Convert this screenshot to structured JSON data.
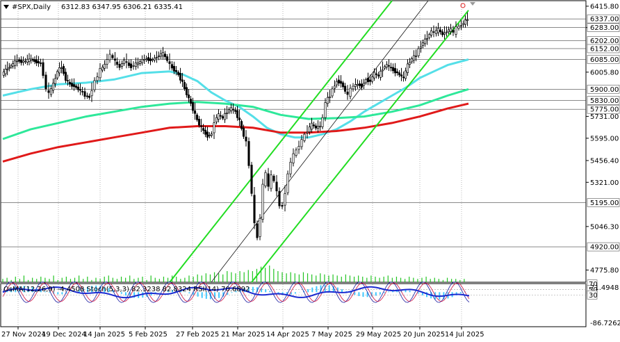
{
  "chart_data": [
    {
      "type": "candlestick",
      "title": "#SPX,Daily",
      "ohlc_label": "6312.83 6347.95 6306.21 6335.41",
      "ylim": [
        4700,
        6450
      ],
      "y_ticks": [
        "6415.80",
        "6283.00",
        "6005.80",
        "5731.00",
        "5595.00",
        "5456.40",
        "5321.00",
        "5046.30",
        "4775.80"
      ],
      "levels": [
        {
          "label": "6337.00",
          "value": 6337
        },
        {
          "label": "6283.00",
          "value": 6283
        },
        {
          "label": "6202.00",
          "value": 6202
        },
        {
          "label": "6152.00",
          "value": 6152
        },
        {
          "label": "6085.00",
          "value": 6085
        },
        {
          "label": "5900.00",
          "value": 5900
        },
        {
          "label": "5830.00",
          "value": 5830
        },
        {
          "label": "5775.00",
          "value": 5775
        },
        {
          "label": "5195.00",
          "value": 5195
        },
        {
          "label": "4920.00",
          "value": 4920
        }
      ],
      "x_labels": [
        "27 Nov 2024",
        "19 Dec 2024",
        "14 Jan 2025",
        "5 Feb 2025",
        "27 Feb 2025",
        "21 Mar 2025",
        "14 Apr 2025",
        "7 May 2025",
        "29 May 2025",
        "20 Jun 2025",
        "14 Jul 2025"
      ],
      "close_path": [
        [
          0,
          5990
        ],
        [
          8,
          6030
        ],
        [
          16,
          6055
        ],
        [
          22,
          6080
        ],
        [
          28,
          6070
        ],
        [
          34,
          6075
        ],
        [
          42,
          6085
        ],
        [
          50,
          6070
        ],
        [
          56,
          6060
        ],
        [
          60,
          5990
        ],
        [
          64,
          5900
        ],
        [
          68,
          5870
        ],
        [
          74,
          5930
        ],
        [
          80,
          6010
        ],
        [
          86,
          6040
        ],
        [
          92,
          5960
        ],
        [
          98,
          5930
        ],
        [
          104,
          5920
        ],
        [
          110,
          5900
        ],
        [
          116,
          5880
        ],
        [
          120,
          5860
        ],
        [
          126,
          5850
        ],
        [
          130,
          5900
        ],
        [
          134,
          5950
        ],
        [
          138,
          5980
        ],
        [
          142,
          6020
        ],
        [
          148,
          6050
        ],
        [
          152,
          6090
        ],
        [
          156,
          6110
        ],
        [
          160,
          6095
        ],
        [
          166,
          6050
        ],
        [
          170,
          6040
        ],
        [
          176,
          6080
        ],
        [
          180,
          6060
        ],
        [
          186,
          6040
        ],
        [
          190,
          6050
        ],
        [
          196,
          6060
        ],
        [
          202,
          6080
        ],
        [
          208,
          6090
        ],
        [
          214,
          6080
        ],
        [
          220,
          6090
        ],
        [
          226,
          6110
        ],
        [
          232,
          6120
        ],
        [
          238,
          6080
        ],
        [
          242,
          6050
        ],
        [
          248,
          6020
        ],
        [
          254,
          5990
        ],
        [
          260,
          5940
        ],
        [
          266,
          5870
        ],
        [
          272,
          5810
        ],
        [
          278,
          5740
        ],
        [
          284,
          5680
        ],
        [
          290,
          5640
        ],
        [
          296,
          5610
        ],
        [
          302,
          5620
        ],
        [
          306,
          5700
        ],
        [
          312,
          5740
        ],
        [
          318,
          5720
        ],
        [
          324,
          5760
        ],
        [
          330,
          5780
        ],
        [
          336,
          5760
        ],
        [
          342,
          5700
        ],
        [
          348,
          5610
        ],
        [
          352,
          5570
        ],
        [
          356,
          5430
        ],
        [
          360,
          5250
        ],
        [
          364,
          5060
        ],
        [
          368,
          4980
        ],
        [
          372,
          5100
        ],
        [
          376,
          5300
        ],
        [
          380,
          5380
        ],
        [
          384,
          5290
        ],
        [
          388,
          5360
        ],
        [
          392,
          5330
        ],
        [
          396,
          5260
        ],
        [
          400,
          5180
        ],
        [
          404,
          5170
        ],
        [
          408,
          5260
        ],
        [
          412,
          5370
        ],
        [
          416,
          5450
        ],
        [
          420,
          5490
        ],
        [
          424,
          5520
        ],
        [
          428,
          5550
        ],
        [
          432,
          5580
        ],
        [
          436,
          5620
        ],
        [
          440,
          5640
        ],
        [
          446,
          5680
        ],
        [
          452,
          5660
        ],
        [
          458,
          5670
        ],
        [
          462,
          5720
        ],
        [
          466,
          5820
        ],
        [
          472,
          5860
        ],
        [
          476,
          5900
        ],
        [
          482,
          5950
        ],
        [
          488,
          5940
        ],
        [
          494,
          5890
        ],
        [
          498,
          5860
        ],
        [
          502,
          5900
        ],
        [
          506,
          5920
        ],
        [
          512,
          5930
        ],
        [
          518,
          5920
        ],
        [
          524,
          5960
        ],
        [
          530,
          5950
        ],
        [
          536,
          6000
        ],
        [
          542,
          5980
        ],
        [
          548,
          6030
        ],
        [
          554,
          6050
        ],
        [
          560,
          6030
        ],
        [
          566,
          6010
        ],
        [
          572,
          5990
        ],
        [
          578,
          5970
        ],
        [
          584,
          6050
        ],
        [
          590,
          6090
        ],
        [
          596,
          6110
        ],
        [
          600,
          6150
        ],
        [
          606,
          6190
        ],
        [
          612,
          6220
        ],
        [
          618,
          6260
        ],
        [
          622,
          6250
        ],
        [
          628,
          6270
        ],
        [
          634,
          6240
        ],
        [
          640,
          6260
        ],
        [
          646,
          6270
        ],
        [
          650,
          6250
        ],
        [
          654,
          6280
        ],
        [
          658,
          6290
        ],
        [
          664,
          6310
        ],
        [
          670,
          6335
        ]
      ],
      "series": [
        {
          "name": "",
          "color": "#55dfe8",
          "points": [
            [
              0,
              5860
            ],
            [
              40,
              5900
            ],
            [
              80,
              5930
            ],
            [
              120,
              5940
            ],
            [
              160,
              5960
            ],
            [
              200,
              6000
            ],
            [
              240,
              6010
            ],
            [
              260,
              5990
            ],
            [
              280,
              5950
            ],
            [
              300,
              5880
            ],
            [
              320,
              5830
            ],
            [
              340,
              5790
            ],
            [
              360,
              5730
            ],
            [
              380,
              5660
            ],
            [
              400,
              5620
            ],
            [
              420,
              5600
            ],
            [
              440,
              5600
            ],
            [
              460,
              5620
            ],
            [
              480,
              5650
            ],
            [
              500,
              5700
            ],
            [
              520,
              5760
            ],
            [
              540,
              5810
            ],
            [
              560,
              5860
            ],
            [
              580,
              5910
            ],
            [
              600,
              5970
            ],
            [
              620,
              6010
            ],
            [
              640,
              6050
            ],
            [
              670,
              6085
            ]
          ]
        },
        {
          "name": "",
          "color": "#2ee89a",
          "points": [
            [
              0,
              5590
            ],
            [
              40,
              5650
            ],
            [
              80,
              5690
            ],
            [
              120,
              5730
            ],
            [
              160,
              5760
            ],
            [
              200,
              5790
            ],
            [
              240,
              5810
            ],
            [
              280,
              5820
            ],
            [
              320,
              5810
            ],
            [
              360,
              5790
            ],
            [
              400,
              5740
            ],
            [
              440,
              5715
            ],
            [
              480,
              5720
            ],
            [
              520,
              5730
            ],
            [
              560,
              5760
            ],
            [
              600,
              5800
            ],
            [
              640,
              5860
            ],
            [
              670,
              5900
            ]
          ]
        },
        {
          "name": "",
          "color": "#e01a1a",
          "points": [
            [
              0,
              5450
            ],
            [
              40,
              5500
            ],
            [
              80,
              5540
            ],
            [
              120,
              5570
            ],
            [
              160,
              5600
            ],
            [
              200,
              5630
            ],
            [
              240,
              5660
            ],
            [
              280,
              5670
            ],
            [
              320,
              5670
            ],
            [
              360,
              5660
            ],
            [
              400,
              5630
            ],
            [
              440,
              5630
            ],
            [
              480,
              5640
            ],
            [
              520,
              5660
            ],
            [
              560,
              5690
            ],
            [
              600,
              5730
            ],
            [
              640,
              5780
            ],
            [
              670,
              5810
            ]
          ]
        }
      ],
      "channels": [
        {
          "color": "#22dd22",
          "line": [
            [
              240,
              4700
            ],
            [
              560,
              6450
            ]
          ]
        },
        {
          "color": "#22dd22",
          "line": [
            [
              358,
              4700
            ],
            [
              670,
              6390
            ]
          ]
        },
        {
          "color": "#111111",
          "line": [
            [
              300,
              4700
            ],
            [
              612,
              6450
            ]
          ]
        }
      ],
      "volume": [
        3,
        4,
        2,
        5,
        3,
        6,
        2,
        4,
        3,
        5,
        4,
        3,
        6,
        2,
        4,
        5,
        3,
        4,
        6,
        3,
        5,
        2,
        4,
        3,
        5,
        6,
        4,
        3,
        5,
        4,
        6,
        3,
        4,
        5,
        2,
        6,
        4,
        3,
        5,
        4,
        6,
        5,
        3,
        4,
        6,
        5,
        7,
        6,
        8,
        7,
        9,
        8,
        7,
        10,
        9,
        8,
        10,
        9,
        11,
        10,
        12,
        14,
        13,
        15,
        12,
        10,
        9,
        8,
        9,
        8,
        7,
        9,
        8,
        7,
        6,
        8,
        7,
        6,
        7,
        6,
        5,
        7,
        6,
        5,
        6,
        5,
        4,
        6,
        5,
        4,
        5,
        6,
        4,
        5,
        4,
        3,
        5,
        4,
        3,
        4,
        5,
        3,
        4,
        3,
        2,
        4,
        3,
        3,
        2,
        3
      ]
    },
    {
      "type": "oscillator",
      "header": "OsMA(12,26,9) -4.4508  Stoch(5,3,3) 82.3238 82.8324 RSI(14) 70.6892",
      "ylim": [
        -86.7262,
        71.4948
      ],
      "y_ticks": [
        "71.4948",
        "-86.7262"
      ],
      "levels": [
        {
          "label": "70",
          "value": 70
        },
        {
          "label": "50",
          "value": 50
        },
        {
          "label": "30",
          "value": 30
        }
      ]
    }
  ]
}
